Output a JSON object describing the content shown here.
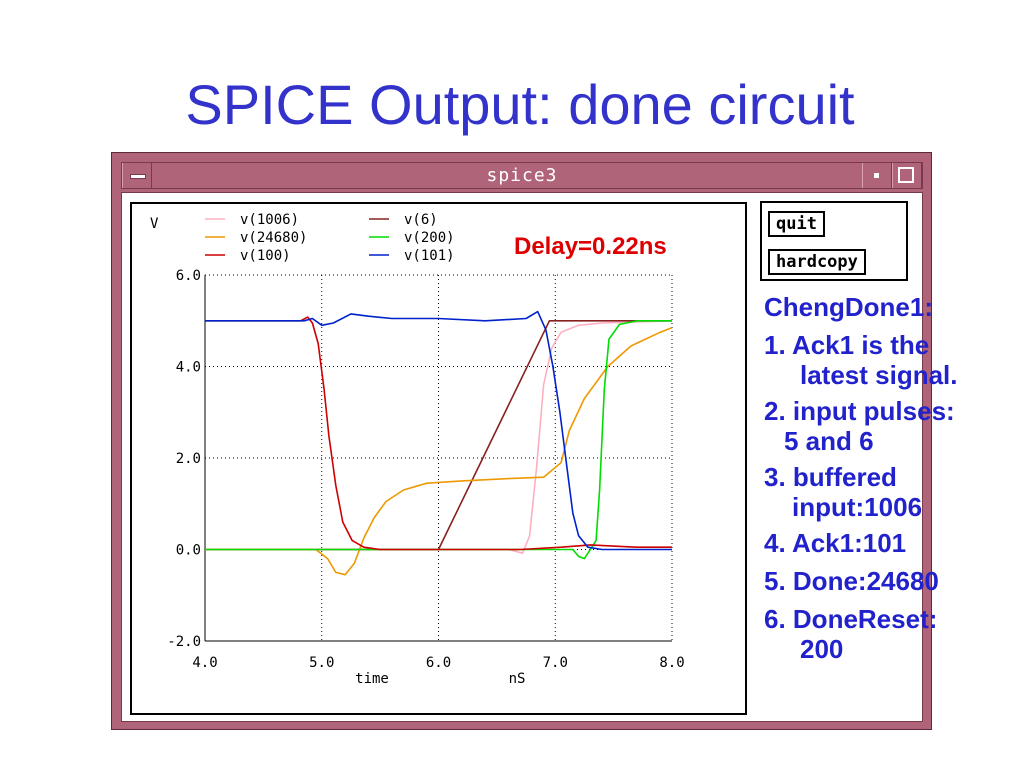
{
  "slide": {
    "title": "SPICE Output: done circuit"
  },
  "window": {
    "title": "spice3"
  },
  "buttons": {
    "quit": "quit",
    "hardcopy": "hardcopy"
  },
  "annotation": {
    "delay": "Delay=0.22ns",
    "delay_color": "#dd0000"
  },
  "notes": {
    "heading": "ChengDone1:",
    "items": [
      {
        "line1": "1. Ack1 is the",
        "line2": "latest signal."
      },
      {
        "line1": "2. input pulses:",
        "line2": "5 and 6"
      },
      {
        "line1": "3. buffered",
        "line2": "input:1006"
      },
      {
        "line1": "4. Ack1:101",
        "line2": ""
      },
      {
        "line1": "5. Done:24680",
        "line2": ""
      },
      {
        "line1": "6. DoneReset:",
        "line2": "200"
      }
    ],
    "color": "#2222cc"
  },
  "chart_data": {
    "type": "line",
    "ylabel": "V",
    "xlabel": "time",
    "xunit": "nS",
    "xlim": [
      4.0,
      8.0
    ],
    "ylim": [
      -2.0,
      6.0
    ],
    "xticks": [
      "4.0",
      "5.0",
      "6.0",
      "7.0",
      "8.0"
    ],
    "yticks": [
      "-2.0",
      "0.0",
      "2.0",
      "4.0",
      "6.0"
    ],
    "grid": true,
    "legend_placement": "top-left",
    "series": [
      {
        "name": "v(1006)",
        "color": "#ffb0c0",
        "points": [
          [
            4.0,
            0
          ],
          [
            6.6,
            0
          ],
          [
            6.72,
            -0.08
          ],
          [
            6.78,
            0.3
          ],
          [
            6.84,
            1.8
          ],
          [
            6.9,
            3.6
          ],
          [
            6.97,
            4.4
          ],
          [
            7.05,
            4.75
          ],
          [
            7.2,
            4.9
          ],
          [
            7.4,
            4.95
          ],
          [
            8.0,
            5.0
          ]
        ]
      },
      {
        "name": "v(6)",
        "color": "#882222",
        "points": [
          [
            4.0,
            0
          ],
          [
            6.0,
            0
          ],
          [
            6.95,
            5.0
          ],
          [
            8.0,
            5.0
          ]
        ]
      },
      {
        "name": "v(24680)",
        "color": "#ee9900",
        "points": [
          [
            4.0,
            0
          ],
          [
            4.95,
            0
          ],
          [
            5.05,
            -0.2
          ],
          [
            5.12,
            -0.5
          ],
          [
            5.2,
            -0.55
          ],
          [
            5.28,
            -0.3
          ],
          [
            5.36,
            0.25
          ],
          [
            5.45,
            0.7
          ],
          [
            5.55,
            1.05
          ],
          [
            5.7,
            1.3
          ],
          [
            5.9,
            1.45
          ],
          [
            6.2,
            1.5
          ],
          [
            6.6,
            1.55
          ],
          [
            6.9,
            1.58
          ],
          [
            7.05,
            1.9
          ],
          [
            7.12,
            2.6
          ],
          [
            7.25,
            3.3
          ],
          [
            7.45,
            4.0
          ],
          [
            7.65,
            4.45
          ],
          [
            7.9,
            4.75
          ],
          [
            8.0,
            4.85
          ]
        ]
      },
      {
        "name": "v(200)",
        "color": "#00dd00",
        "points": [
          [
            4.0,
            0
          ],
          [
            7.15,
            0
          ],
          [
            7.2,
            -0.15
          ],
          [
            7.25,
            -0.2
          ],
          [
            7.3,
            0
          ],
          [
            7.35,
            0.2
          ],
          [
            7.38,
            1.3
          ],
          [
            7.42,
            3.5
          ],
          [
            7.46,
            4.6
          ],
          [
            7.55,
            4.92
          ],
          [
            7.7,
            5.0
          ],
          [
            8.0,
            5.0
          ]
        ]
      },
      {
        "name": "v(100)",
        "color": "#cc0000",
        "points": [
          [
            4.0,
            5.0
          ],
          [
            4.82,
            5.0
          ],
          [
            4.88,
            5.08
          ],
          [
            4.92,
            4.95
          ],
          [
            4.97,
            4.5
          ],
          [
            5.02,
            3.5
          ],
          [
            5.06,
            2.5
          ],
          [
            5.12,
            1.4
          ],
          [
            5.18,
            0.6
          ],
          [
            5.26,
            0.2
          ],
          [
            5.36,
            0.05
          ],
          [
            5.5,
            0
          ],
          [
            5.7,
            0
          ],
          [
            6.7,
            0
          ],
          [
            7.05,
            0.05
          ],
          [
            7.3,
            0.1
          ],
          [
            7.7,
            0.05
          ],
          [
            8.0,
            0.05
          ]
        ]
      },
      {
        "name": "v(101)",
        "color": "#0022cc",
        "points": [
          [
            4.0,
            5.0
          ],
          [
            4.85,
            5.0
          ],
          [
            4.92,
            5.05
          ],
          [
            5.0,
            4.9
          ],
          [
            5.1,
            4.95
          ],
          [
            5.25,
            5.15
          ],
          [
            5.4,
            5.1
          ],
          [
            5.6,
            5.05
          ],
          [
            6.0,
            5.05
          ],
          [
            6.4,
            5.0
          ],
          [
            6.75,
            5.05
          ],
          [
            6.85,
            5.2
          ],
          [
            6.92,
            4.8
          ],
          [
            6.98,
            4.0
          ],
          [
            7.04,
            3.0
          ],
          [
            7.1,
            1.8
          ],
          [
            7.15,
            0.8
          ],
          [
            7.2,
            0.3
          ],
          [
            7.28,
            0.05
          ],
          [
            7.4,
            0
          ],
          [
            8.0,
            0
          ]
        ]
      }
    ]
  }
}
